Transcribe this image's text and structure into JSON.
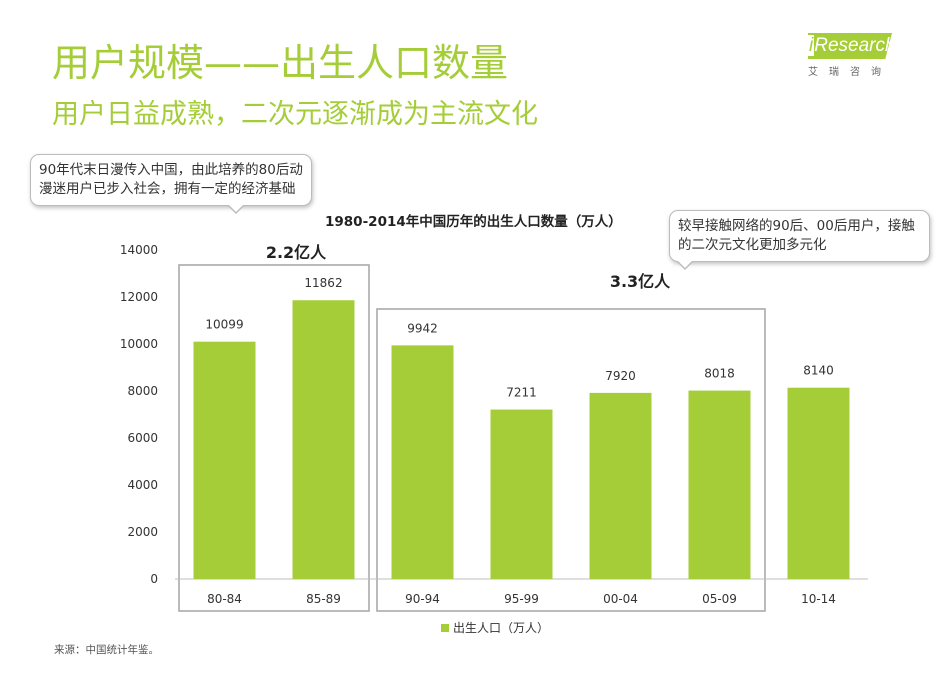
{
  "header": {
    "title": "用户规模——出生人口数量",
    "subtitle": "用户日益成熟，二次元逐渐成为主流文化"
  },
  "logo": {
    "i": "i",
    "name": "Research",
    "cn": "艾瑞咨询"
  },
  "callouts": {
    "left": "90年代末日漫传入中国，由此培养的80后动漫迷用户已步入社会，拥有一定的经济基础",
    "right": "较早接触网络的90后、00后用户，接触的二次元文化更加多元化"
  },
  "groups": {
    "first_label": "2.2亿人",
    "second_label": "3.3亿人"
  },
  "source": "来源：中国统计年鉴。",
  "colors": {
    "accent": "#a5cd38",
    "bar": "#a5cd38",
    "group_box": "#aaaaaa"
  },
  "chart_data": {
    "type": "bar",
    "title": "1980-2014年中国历年的出生人口数量（万人）",
    "categories": [
      "80-84",
      "85-89",
      "90-94",
      "95-99",
      "00-04",
      "05-09",
      "10-14"
    ],
    "series": [
      {
        "name": "出生人口（万人）",
        "values": [
          10099,
          11862,
          9942,
          7211,
          7920,
          8018,
          8140
        ]
      }
    ],
    "yticks": [
      0,
      2000,
      4000,
      6000,
      8000,
      10000,
      12000,
      14000
    ],
    "ylim": [
      0,
      14000
    ],
    "xlabel": "",
    "ylabel": "",
    "grid": false,
    "legend": "bottom"
  }
}
